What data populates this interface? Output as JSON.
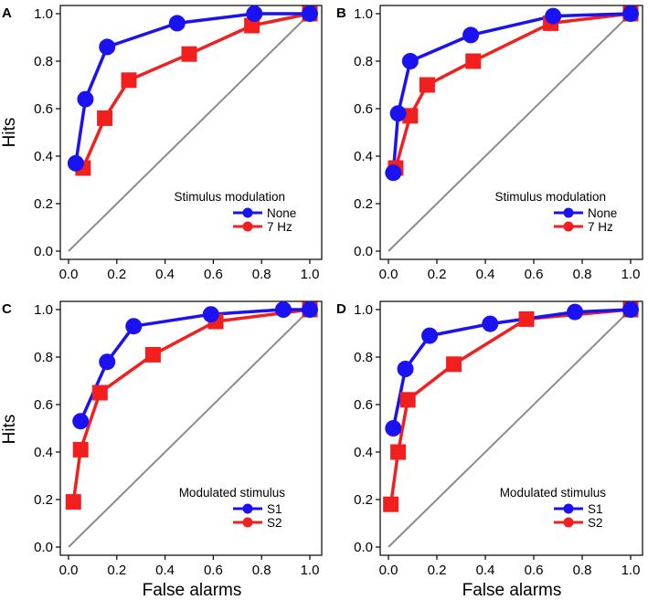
{
  "axis_titles": {
    "ylabel": "Hits",
    "xlabel": "False alarms"
  },
  "colors": {
    "s1": "#1a12f2",
    "s2": "#f21f1f",
    "diagonal": "#8c8c8c",
    "frame": "#000000"
  },
  "chart_data": [
    {
      "type": "line",
      "panel": "A",
      "xlim": [
        0,
        1
      ],
      "ylim": [
        0,
        1
      ],
      "xticks": [
        "0.0",
        "0.2",
        "0.4",
        "0.6",
        "0.8",
        "1.0"
      ],
      "yticks": [
        "0.0",
        "0.2",
        "0.4",
        "0.6",
        "0.8",
        "1.0"
      ],
      "show_xticklabels": true,
      "show_ylabel": true,
      "show_xlabel": false,
      "legend_title": "Stimulus modulation",
      "series": [
        {
          "name": "None",
          "marker": "circle",
          "color": "#1a12f2",
          "x": [
            0.03,
            0.07,
            0.16,
            0.45,
            0.77,
            1.0
          ],
          "y": [
            0.37,
            0.64,
            0.86,
            0.96,
            1.0,
            1.0
          ]
        },
        {
          "name": "7 Hz",
          "marker": "square",
          "color": "#f21f1f",
          "x": [
            0.06,
            0.15,
            0.25,
            0.5,
            0.76,
            1.0
          ],
          "y": [
            0.35,
            0.56,
            0.72,
            0.83,
            0.95,
            1.0
          ]
        }
      ]
    },
    {
      "type": "line",
      "panel": "B",
      "xlim": [
        0,
        1
      ],
      "ylim": [
        0,
        1
      ],
      "xticks": [
        "0.0",
        "0.2",
        "0.4",
        "0.6",
        "0.8",
        "1.0"
      ],
      "yticks": [
        "0.0",
        "0.2",
        "0.4",
        "0.6",
        "0.8",
        "1.0"
      ],
      "show_xticklabels": true,
      "show_ylabel": false,
      "show_xlabel": false,
      "legend_title": "Stimulus modulation",
      "series": [
        {
          "name": "None",
          "marker": "circle",
          "color": "#1a12f2",
          "x": [
            0.02,
            0.04,
            0.09,
            0.34,
            0.68,
            1.0
          ],
          "y": [
            0.33,
            0.58,
            0.8,
            0.91,
            0.99,
            1.0
          ]
        },
        {
          "name": "7 Hz",
          "marker": "square",
          "color": "#f21f1f",
          "x": [
            0.03,
            0.09,
            0.16,
            0.35,
            0.67,
            1.0
          ],
          "y": [
            0.35,
            0.57,
            0.7,
            0.8,
            0.96,
            1.0
          ]
        }
      ]
    },
    {
      "type": "line",
      "panel": "C",
      "xlim": [
        0,
        1
      ],
      "ylim": [
        0,
        1
      ],
      "xticks": [
        "0.0",
        "0.2",
        "0.4",
        "0.6",
        "0.8",
        "1.0"
      ],
      "yticks": [
        "0.0",
        "0.2",
        "0.4",
        "0.6",
        "0.8",
        "1.0"
      ],
      "show_xticklabels": true,
      "show_ylabel": true,
      "show_xlabel": true,
      "legend_title": "Modulated stimulus",
      "series": [
        {
          "name": "S1",
          "marker": "circle",
          "color": "#1a12f2",
          "x": [
            0.05,
            0.16,
            0.27,
            0.59,
            0.89,
            1.0
          ],
          "y": [
            0.53,
            0.78,
            0.93,
            0.98,
            1.0,
            1.0
          ]
        },
        {
          "name": "S2",
          "marker": "square",
          "color": "#f21f1f",
          "x": [
            0.02,
            0.05,
            0.13,
            0.35,
            0.61,
            1.0
          ],
          "y": [
            0.19,
            0.41,
            0.65,
            0.81,
            0.95,
            1.0
          ]
        }
      ]
    },
    {
      "type": "line",
      "panel": "D",
      "xlim": [
        0,
        1
      ],
      "ylim": [
        0,
        1
      ],
      "xticks": [
        "0.0",
        "0.2",
        "0.4",
        "0.6",
        "0.8",
        "1.0"
      ],
      "yticks": [
        "0.0",
        "0.2",
        "0.4",
        "0.6",
        "0.8",
        "1.0"
      ],
      "show_xticklabels": true,
      "show_ylabel": false,
      "show_xlabel": true,
      "legend_title": "Modulated stimulus",
      "series": [
        {
          "name": "S1",
          "marker": "circle",
          "color": "#1a12f2",
          "x": [
            0.02,
            0.07,
            0.17,
            0.42,
            0.77,
            1.0
          ],
          "y": [
            0.5,
            0.75,
            0.89,
            0.94,
            0.99,
            1.0
          ]
        },
        {
          "name": "S2",
          "marker": "square",
          "color": "#f21f1f",
          "x": [
            0.01,
            0.04,
            0.08,
            0.27,
            0.57,
            1.0
          ],
          "y": [
            0.18,
            0.4,
            0.62,
            0.77,
            0.96,
            1.0
          ]
        }
      ]
    }
  ]
}
